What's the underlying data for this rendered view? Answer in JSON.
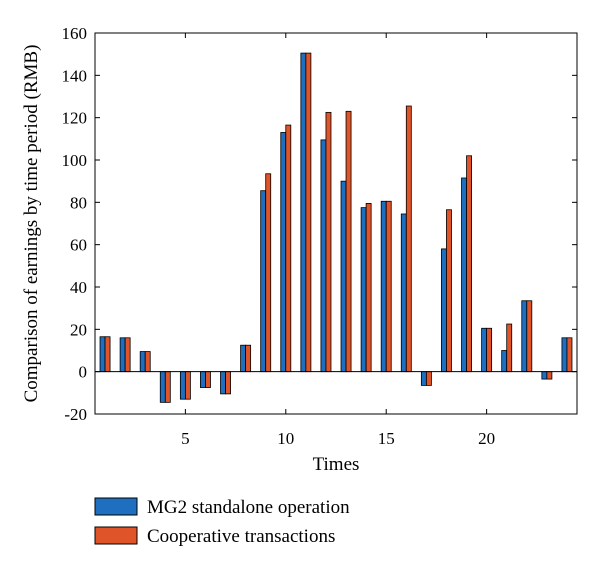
{
  "chart_data": {
    "type": "bar",
    "title": "",
    "xlabel": "Times",
    "ylabel": "Comparison of earnings by time period (RMB)",
    "xlim": [
      0.5,
      24.5
    ],
    "ylim": [
      -20,
      160
    ],
    "yticks": [
      -20,
      0,
      20,
      40,
      60,
      80,
      100,
      120,
      140,
      160
    ],
    "xticks": [
      5,
      10,
      15,
      20
    ],
    "x": [
      1,
      2,
      3,
      4,
      5,
      6,
      7,
      8,
      9,
      10,
      11,
      12,
      13,
      14,
      15,
      16,
      17,
      18,
      19,
      20,
      21,
      22,
      23,
      24
    ],
    "grid": false,
    "legend_position": "bottom-left",
    "series": [
      {
        "name": "MG2 standalone operation",
        "color": "#1f6fc0",
        "values": [
          16.5,
          16,
          9.5,
          -14.5,
          -13,
          -7.5,
          -10.5,
          12.5,
          85.5,
          113,
          150.5,
          109.5,
          90,
          77.5,
          80.5,
          74.5,
          -6.5,
          58,
          91.5,
          20.5,
          10,
          33.5,
          -3.5,
          16
        ]
      },
      {
        "name": "Cooperative transactions",
        "color": "#e0542a",
        "values": [
          16.5,
          16,
          9.5,
          -14.5,
          -13,
          -7.5,
          -10.5,
          12.5,
          93.5,
          116.5,
          150.5,
          122.5,
          123,
          79.5,
          80.5,
          125.5,
          -6.5,
          76.5,
          102,
          20.5,
          22.5,
          33.5,
          -3.5,
          16
        ]
      }
    ]
  }
}
